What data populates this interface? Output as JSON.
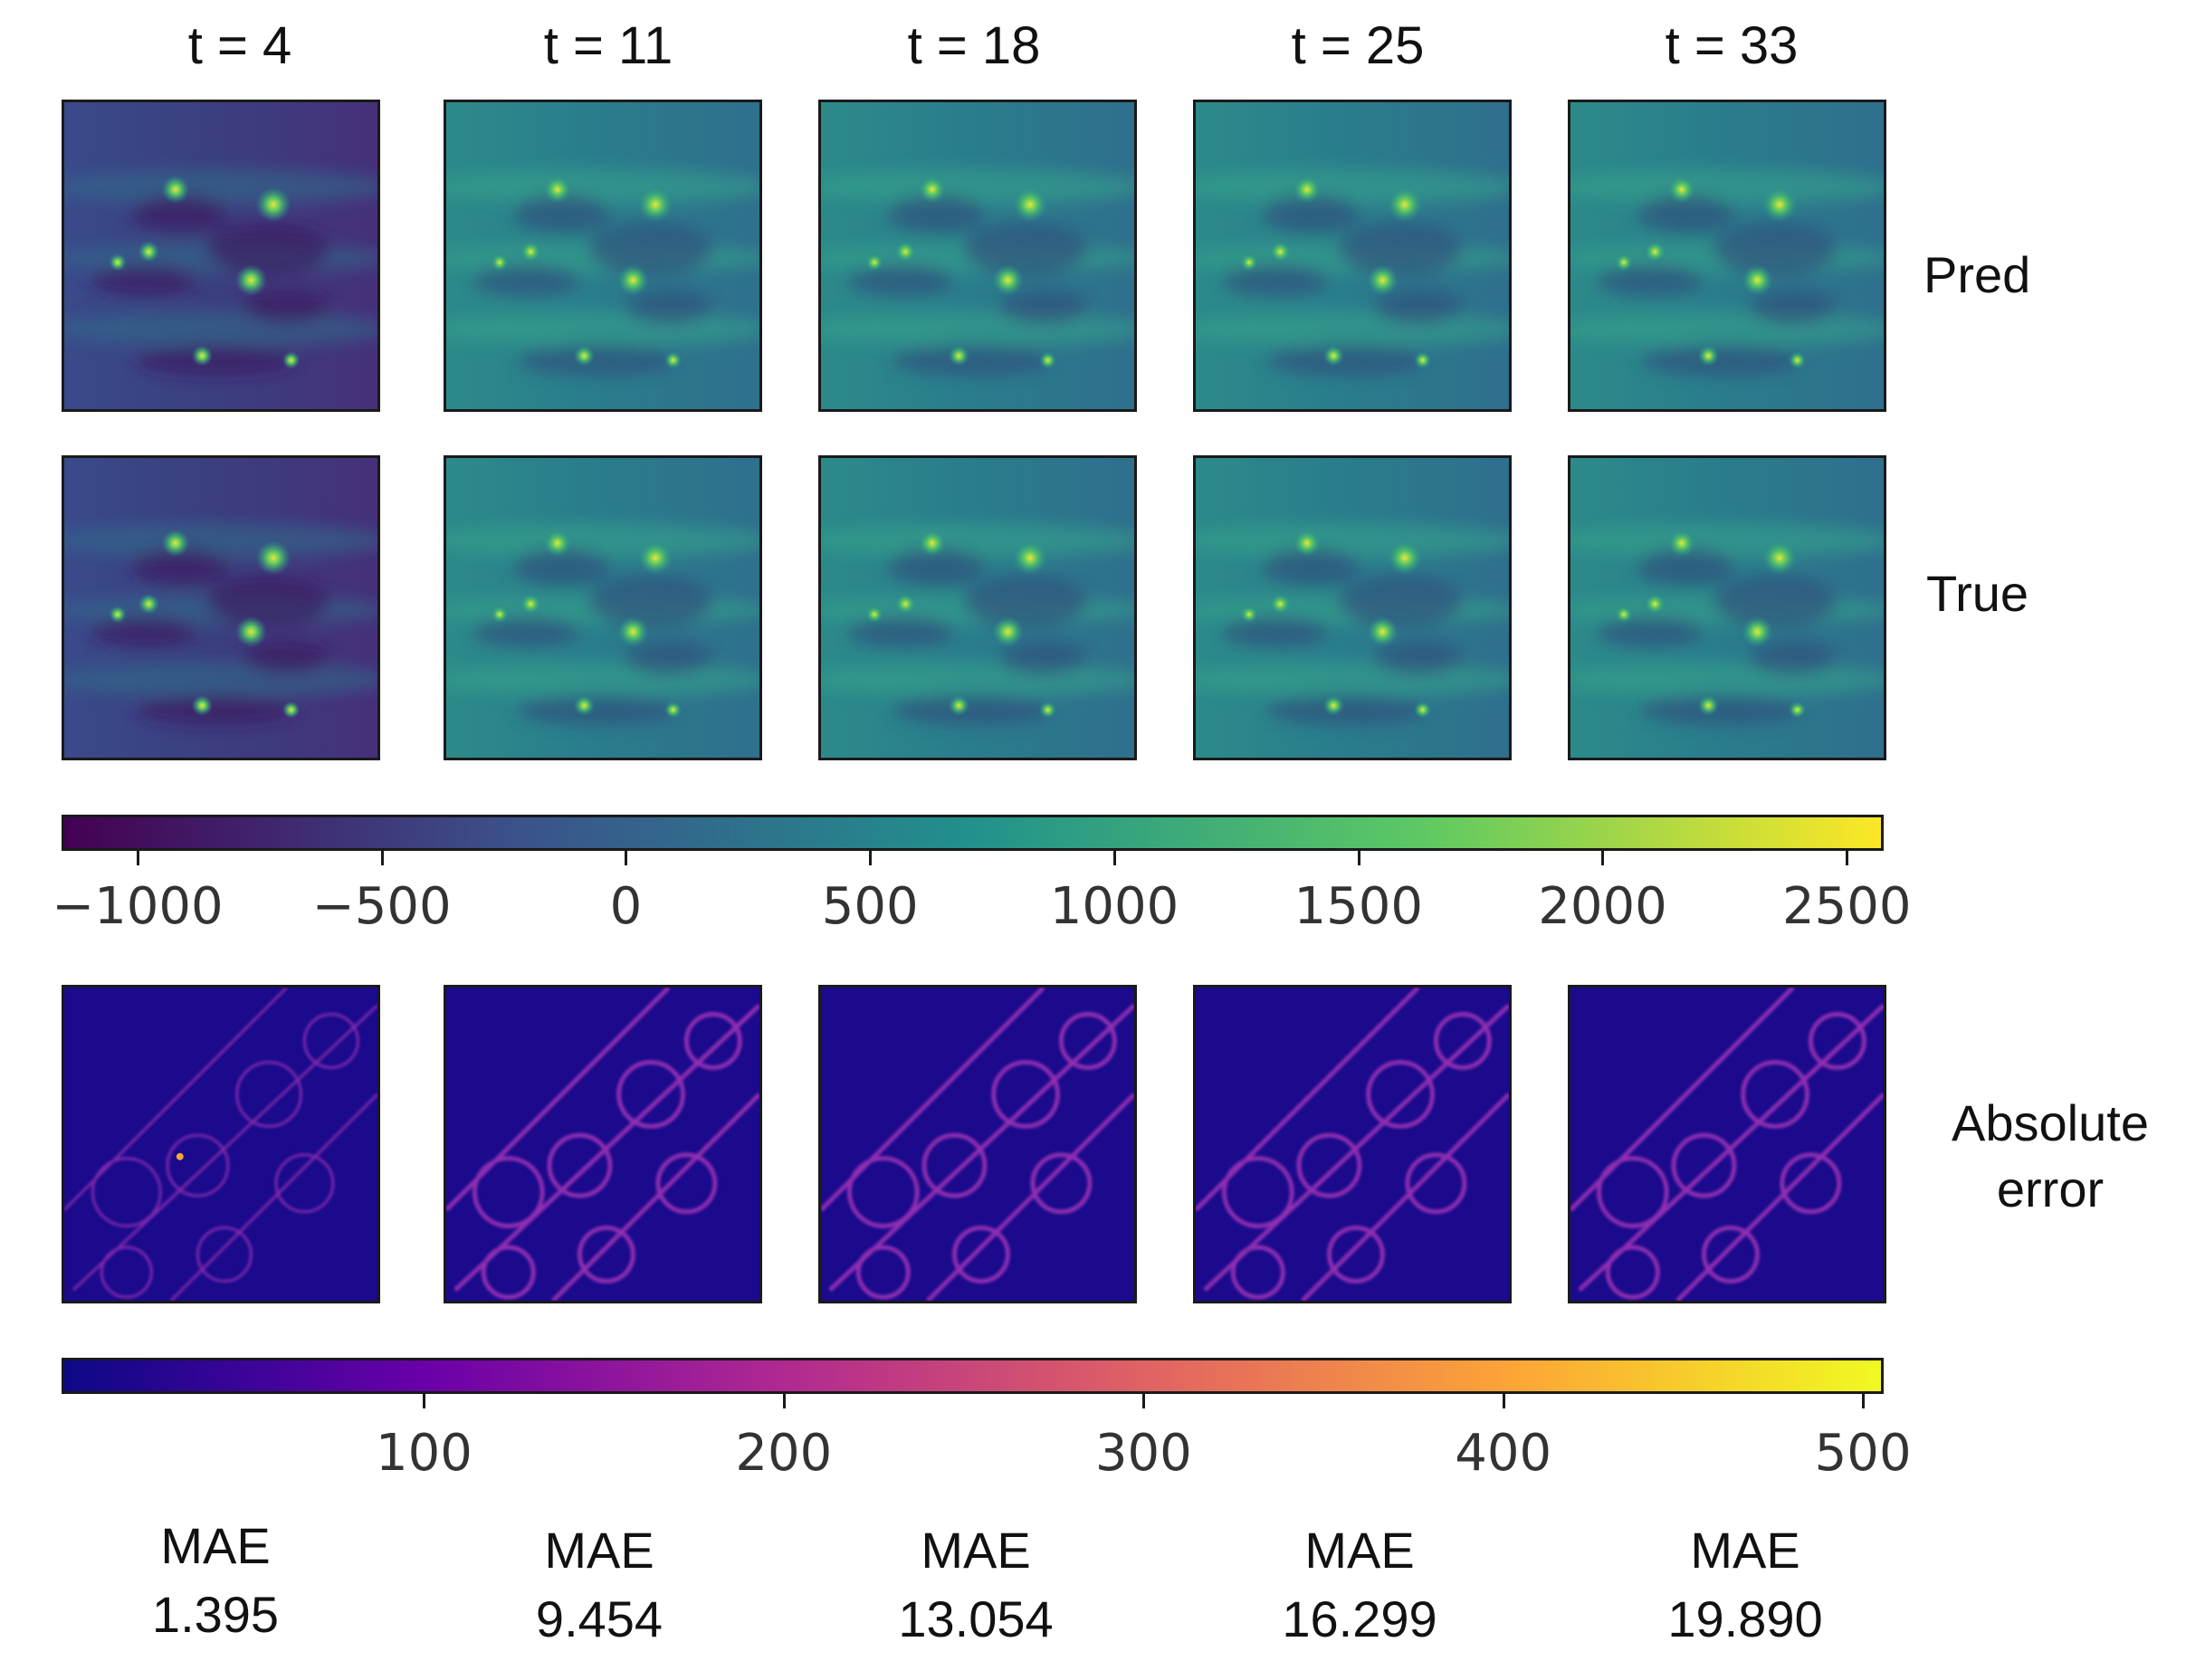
{
  "columns": [
    {
      "title": "t  = 4",
      "mae_label": "MAE",
      "mae_value": "1.395"
    },
    {
      "title": "t = 11",
      "mae_label": "MAE",
      "mae_value": "9.454"
    },
    {
      "title": "t = 18",
      "mae_label": "MAE",
      "mae_value": "13.054"
    },
    {
      "title": "t = 25",
      "mae_label": "MAE",
      "mae_value": "16.299"
    },
    {
      "title": "t = 33",
      "mae_label": "MAE",
      "mae_value": "19.890"
    }
  ],
  "rows": {
    "pred_label": "Pred",
    "true_label": "True",
    "error_label_line1": "Absolute",
    "error_label_line2": "error"
  },
  "colorbar_field": {
    "colormap": "viridis",
    "min": -1150,
    "max": 2570,
    "ticks": [
      "−1000",
      "−500",
      "0",
      "500",
      "1000",
      "1500",
      "2000",
      "2500"
    ],
    "tick_values": [
      -1000,
      -500,
      0,
      500,
      1000,
      1500,
      2000,
      2500
    ],
    "colors": [
      "#440154",
      "#3b528b",
      "#21918c",
      "#5ec962",
      "#fde725"
    ]
  },
  "colorbar_error": {
    "colormap": "plasma",
    "min": 0,
    "max": 505,
    "ticks": [
      "100",
      "200",
      "300",
      "400",
      "500"
    ],
    "tick_values": [
      100,
      200,
      300,
      400,
      500
    ],
    "colors": [
      "#0d0887",
      "#6a00a8",
      "#b12a90",
      "#e16462",
      "#fca636",
      "#f0f921"
    ]
  }
}
